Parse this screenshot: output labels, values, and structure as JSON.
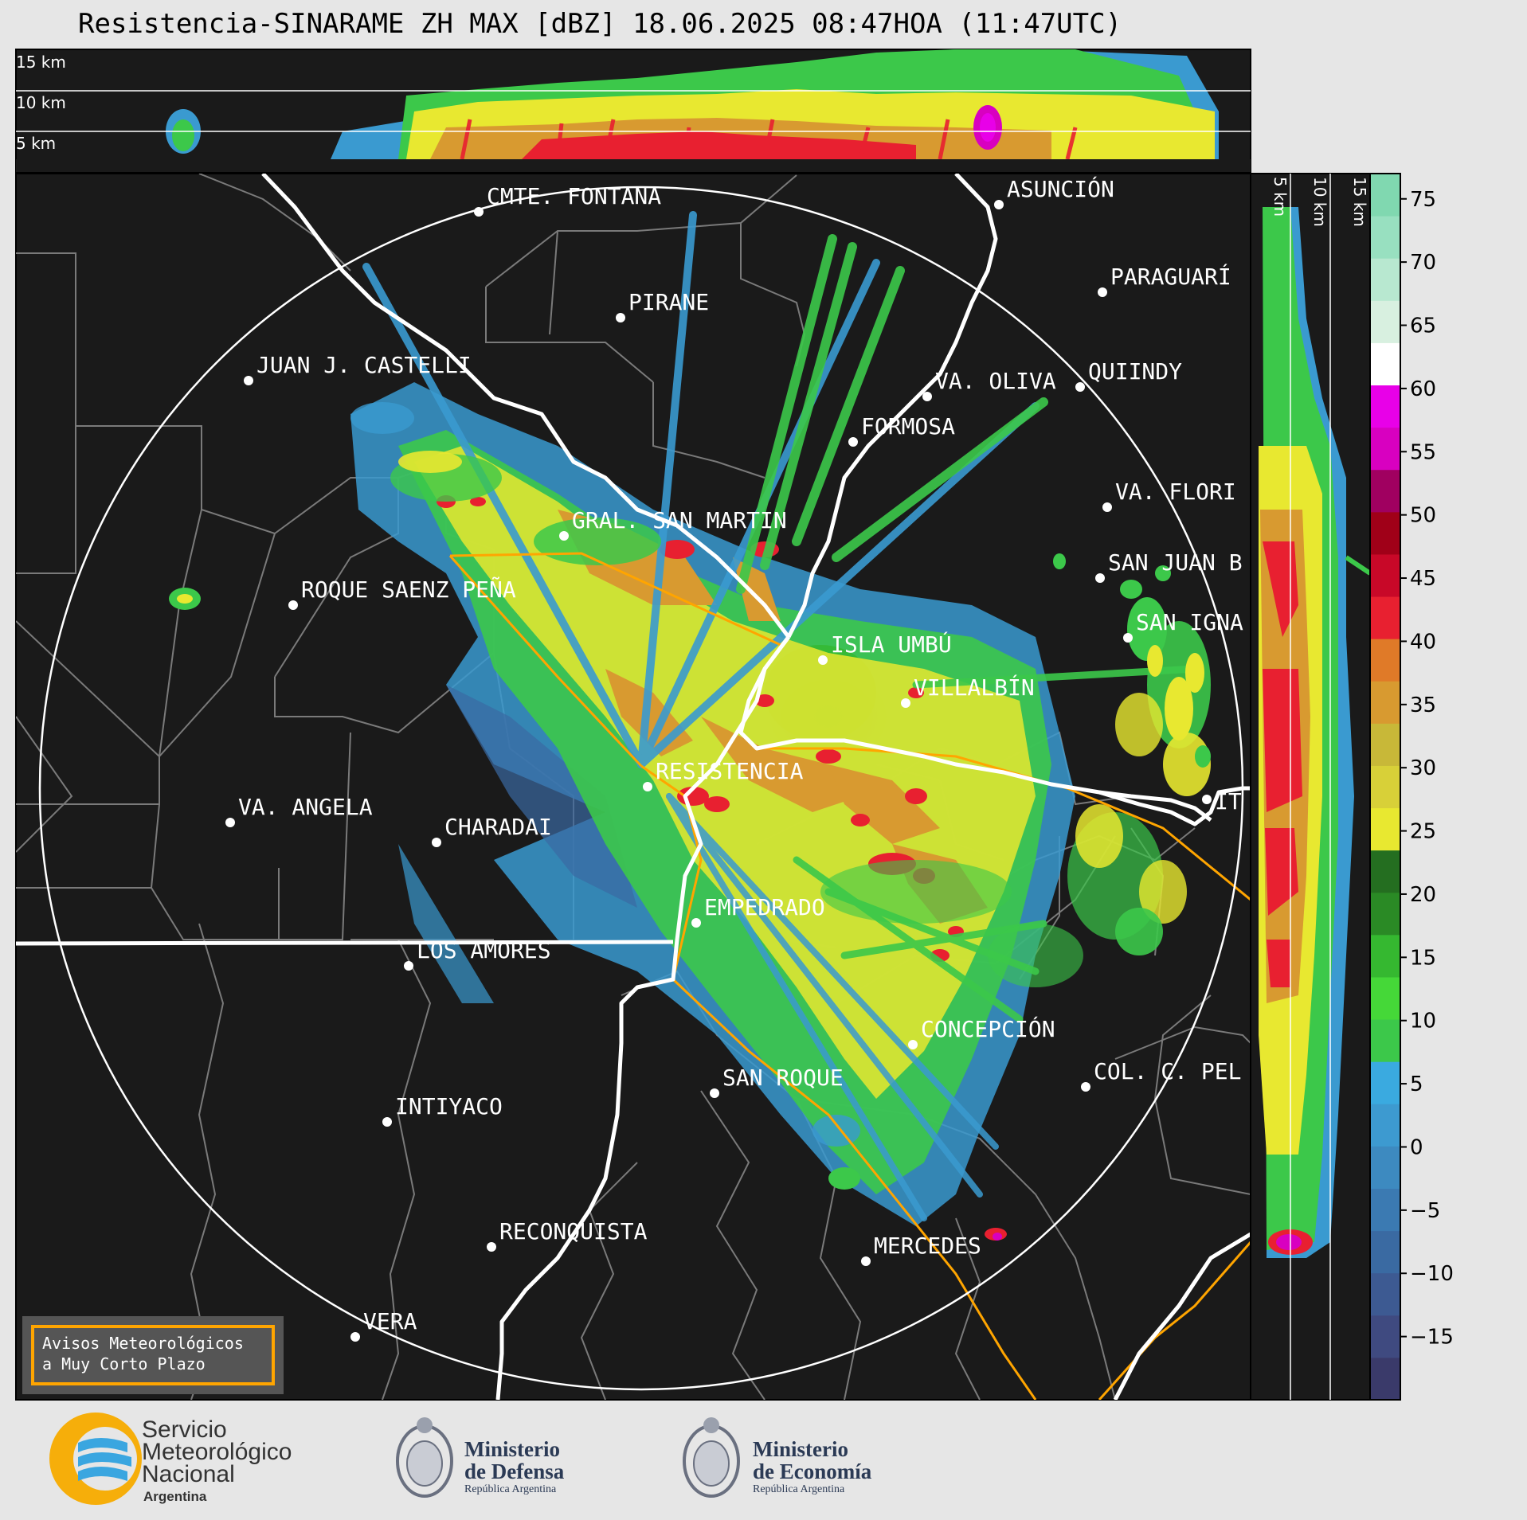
{
  "title": "Resistencia-SINARAME ZH MAX [dBZ] 18.06.2025 08:47HOA (11:47UTC)",
  "top_panel": {
    "height_labels": [
      "15 km",
      "10 km",
      "5 km"
    ]
  },
  "side_panel": {
    "height_labels": [
      "5 km",
      "10 km",
      "15 km"
    ]
  },
  "cities": [
    {
      "name": "CMTE. FONTANA"
    },
    {
      "name": "ASUNCIÓN"
    },
    {
      "name": "PARAGUARÍ"
    },
    {
      "name": "PIRANE"
    },
    {
      "name": "JUAN J. CASTELLI"
    },
    {
      "name": "VA. OLIVA"
    },
    {
      "name": "QUIINDY"
    },
    {
      "name": "FORMOSA"
    },
    {
      "name": "VA. FLORI"
    },
    {
      "name": "GRAL. SAN MARTIN"
    },
    {
      "name": "SAN JUAN B"
    },
    {
      "name": "ROQUE SAENZ PEÑA"
    },
    {
      "name": "SAN IGNA"
    },
    {
      "name": "ISLA UMBÚ"
    },
    {
      "name": "VILLALBÍN"
    },
    {
      "name": "RESISTENCIA"
    },
    {
      "name": "IT"
    },
    {
      "name": "VA. ANGELA"
    },
    {
      "name": "CHARADAI"
    },
    {
      "name": "EMPEDRADO"
    },
    {
      "name": "LOS AMORES"
    },
    {
      "name": "CONCEPCIÓN"
    },
    {
      "name": "SAN ROQUE"
    },
    {
      "name": "COL. C. PEL"
    },
    {
      "name": "INTIYACO"
    },
    {
      "name": "RECONQUISTA"
    },
    {
      "name": "MERCEDES"
    },
    {
      "name": "VERA"
    }
  ],
  "colorbar": {
    "unit": "dBZ",
    "ticks": [
      "75",
      "70",
      "65",
      "60",
      "55",
      "50",
      "45",
      "40",
      "35",
      "30",
      "25",
      "20",
      "15",
      "10",
      "5",
      "0",
      "−5",
      "−10",
      "−15"
    ],
    "colors": [
      "#3a3a6a",
      "#3f4a80",
      "#3d5a92",
      "#3a6aa2",
      "#3b7ab2",
      "#3d8ac0",
      "#3d9ad0",
      "#3aaae0",
      "#3cc84a",
      "#45d838",
      "#35b830",
      "#2a8a25",
      "#246e20",
      "#e8e830",
      "#d8d038",
      "#c8b838",
      "#d89a30",
      "#e07a28",
      "#e82030",
      "#c80828",
      "#a00018",
      "#a00060",
      "#d800c0",
      "#e800e8",
      "#ffffff",
      "#d8f0e0",
      "#b8e8d0",
      "#98e0c0",
      "#80d8b0"
    ],
    "legend_range_dbz": [
      -20,
      77
    ]
  },
  "aviso": {
    "line1": "Avisos Meteorológicos",
    "line2": "a Muy Corto Plazo"
  },
  "logos": {
    "smn_line1": "Servicio",
    "smn_line2": "Meteorológico",
    "smn_line3": "Nacional",
    "smn_line4": "Argentina",
    "defensa_line1": "Ministerio",
    "defensa_line2": "de Defensa",
    "defensa_line3": "República Argentina",
    "economia_line1": "Ministerio",
    "economia_line2": "de Economía",
    "economia_line3": "República Argentina"
  },
  "colors": {
    "map_background": "#1a1a1a",
    "range_ring": "#ffffff",
    "border_white": "#ffffff",
    "province_orange": "#ffa500",
    "department_gray": "#7a7a7a"
  }
}
